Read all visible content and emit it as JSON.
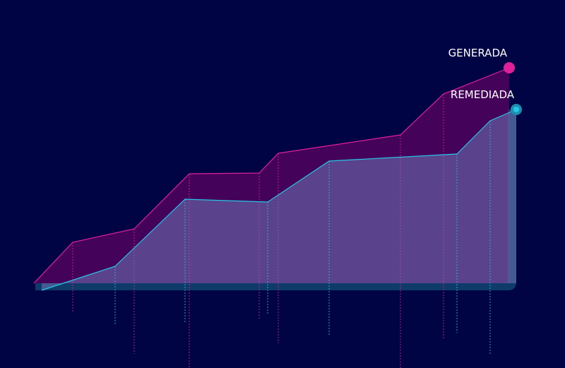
{
  "chart_data": {
    "type": "area",
    "xlim": [
      0,
      800
    ],
    "ylim": [
      -120,
      401
    ],
    "series": [
      {
        "name": "GENERADA",
        "color": "#e0209a",
        "x": [
          48,
          103,
          190,
          268,
          367,
          394,
          567,
          628,
          721
        ],
        "values": [
          0,
          58,
          77,
          155,
          156,
          184,
          210,
          268,
          305
        ]
      },
      {
        "name": "REMEDIADA",
        "color": "#27c6e6",
        "x": [
          59,
          163,
          262,
          379,
          466,
          647,
          694,
          731
        ],
        "values": [
          -10,
          24,
          119,
          115,
          173,
          183,
          230,
          246
        ]
      }
    ]
  }
}
